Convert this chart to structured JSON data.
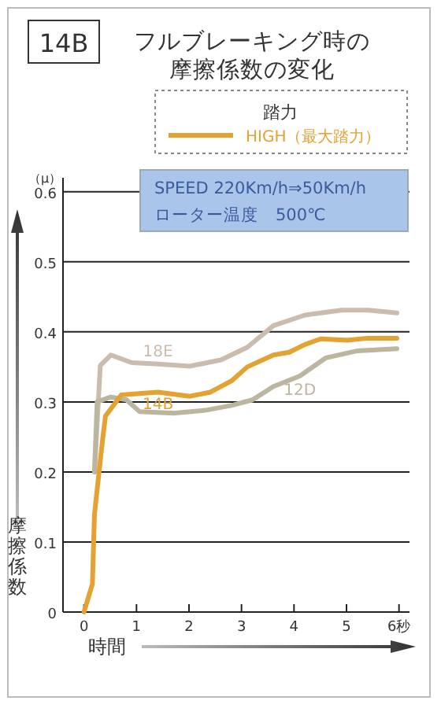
{
  "chart_data": {
    "type": "line",
    "title": "フルブレーキング時の摩擦係数の変化",
    "subtitle": "14B",
    "xlabel": "時間",
    "ylabel": "摩擦係数",
    "legend_title": "踏力",
    "legend": "top right",
    "grid": "y",
    "line_style": "solid",
    "marker": "none",
    "annotations": [
      "（μ）",
      "HIGH（最大踏力）",
      "SPEED 220Km/h⇒50Km/h",
      "ローター温度　500℃"
    ],
    "xlim": [
      -0.4,
      6.2
    ],
    "ylim": [
      0,
      0.62
    ],
    "xticks": [
      0,
      1,
      2,
      3,
      4,
      5,
      {
        "value": 6,
        "label": "6秒"
      }
    ],
    "yticks": [
      0,
      0.1,
      0.2,
      0.3,
      0.4,
      0.5,
      0.6
    ],
    "series": [
      {
        "name": "18E",
        "color": "#cbbcae",
        "x": [
          0.2,
          0.31,
          0.51,
          0.91,
          1.41,
          2.01,
          2.61,
          3.11,
          3.61,
          4.21,
          4.91,
          5.41,
          5.96
        ],
        "values": [
          0.2,
          0.352,
          0.367,
          0.356,
          0.354,
          0.351,
          0.36,
          0.378,
          0.409,
          0.424,
          0.431,
          0.431,
          0.427
        ]
      },
      {
        "name": "12D",
        "color": "#bcb59f",
        "x": [
          0.2,
          0.25,
          0.51,
          0.81,
          1.06,
          1.71,
          2.31,
          2.81,
          3.21,
          3.61,
          4.11,
          4.61,
          5.21,
          5.96
        ],
        "values": [
          0.2,
          0.3,
          0.307,
          0.303,
          0.286,
          0.284,
          0.288,
          0.295,
          0.303,
          0.322,
          0.337,
          0.363,
          0.373,
          0.376
        ]
      },
      {
        "name": "14B",
        "color": "#e3a231",
        "x": [
          0,
          0.16,
          0.2,
          0.36,
          0.41,
          0.71,
          1.41,
          2.01,
          2.41,
          2.81,
          3.11,
          3.61,
          3.91,
          4.21,
          4.51,
          5.01,
          5.41,
          5.96
        ],
        "values": [
          0,
          0.04,
          0.14,
          0.25,
          0.28,
          0.31,
          0.314,
          0.308,
          0.314,
          0.33,
          0.35,
          0.367,
          0.371,
          0.382,
          0.39,
          0.388,
          0.391,
          0.391
        ]
      }
    ]
  }
}
